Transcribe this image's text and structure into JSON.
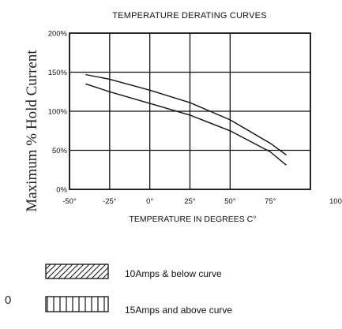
{
  "chart_data": {
    "type": "line",
    "title": "TEMPERATURE DERATING CURVES",
    "xlabel": "TEMPERATURE IN DEGREES C°",
    "ylabel": "Maximum % Hold Current",
    "xlim": [
      -50,
      100
    ],
    "ylim": [
      0,
      200
    ],
    "x_ticks": [
      "-50°",
      "-25°",
      "0°",
      "25°",
      "50°",
      "75°",
      "100°"
    ],
    "y_ticks": [
      "0%",
      "50%",
      "100%",
      "150%",
      "200%"
    ],
    "grid": true,
    "series": [
      {
        "name": "10Amps & below curve",
        "x": [
          -40,
          -25,
          0,
          25,
          50,
          75,
          85
        ],
        "y": [
          147,
          141,
          127,
          111,
          89,
          59,
          44
        ]
      },
      {
        "name": "15Amps and above curve",
        "x": [
          -40,
          -25,
          0,
          25,
          50,
          75,
          85
        ],
        "y": [
          135,
          125,
          110,
          95,
          75,
          48,
          31
        ]
      }
    ],
    "legend": [
      {
        "label": "10Amps & below curve",
        "pattern": "diagonal-hatch"
      },
      {
        "label": "15Amps and above curve",
        "pattern": "vertical-hatch"
      }
    ]
  },
  "edge_text": "0"
}
